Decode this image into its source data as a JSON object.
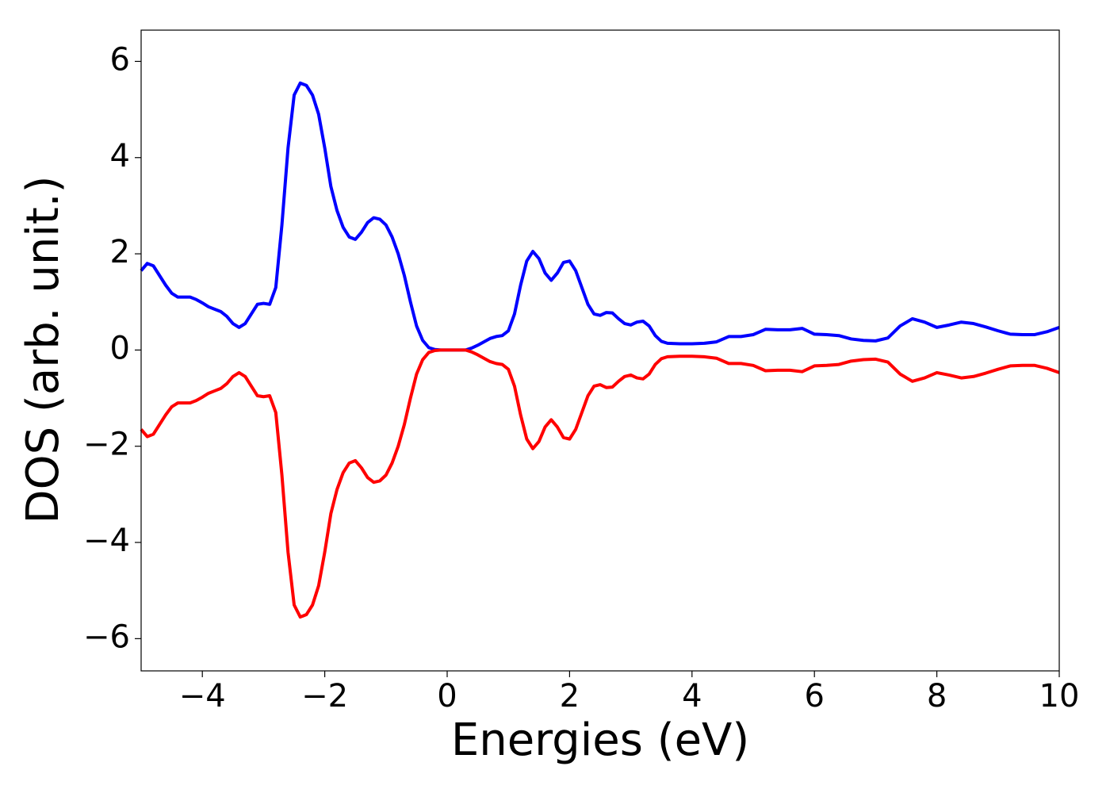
{
  "chart_data": {
    "type": "line",
    "x_label": "Energies (eV)",
    "y_label": "DOS (arb. unit.)",
    "x": [
      -5,
      -4.9,
      -4.8,
      -4.7,
      -4.6,
      -4.5,
      -4.4,
      -4.3,
      -4.2,
      -4.1,
      -4,
      -3.9,
      -3.8,
      -3.7,
      -3.6,
      -3.5,
      -3.4,
      -3.3,
      -3.2,
      -3.1,
      -3,
      -2.9,
      -2.8,
      -2.7,
      -2.6,
      -2.5,
      -2.4,
      -2.3,
      -2.2,
      -2.1,
      -2,
      -1.9,
      -1.8,
      -1.7,
      -1.6,
      -1.5,
      -1.4,
      -1.3,
      -1.2,
      -1.1,
      -1,
      -0.9,
      -0.8,
      -0.7,
      -0.6,
      -0.5,
      -0.4,
      -0.3,
      -0.2,
      -0.1,
      0,
      0.1,
      0.2,
      0.3,
      0.4,
      0.5,
      0.6,
      0.7,
      0.8,
      0.9,
      1,
      1.1,
      1.2,
      1.3,
      1.4,
      1.5,
      1.6,
      1.7,
      1.8,
      1.9,
      2,
      2.1,
      2.2,
      2.3,
      2.4,
      2.5,
      2.6,
      2.7,
      2.8,
      2.9,
      3,
      3.1,
      3.2,
      3.3,
      3.4,
      3.5,
      3.6,
      3.8,
      4,
      4.2,
      4.4,
      4.6,
      4.8,
      5,
      5.2,
      5.4,
      5.6,
      5.8,
      6,
      6.2,
      6.4,
      6.6,
      6.8,
      7,
      7.2,
      7.4,
      7.6,
      7.8,
      8,
      8.2,
      8.4,
      8.6,
      8.8,
      9,
      9.2,
      9.4,
      9.6,
      9.8,
      10
    ],
    "series": [
      {
        "color": "#0000ff",
        "values": [
          1.65,
          1.8,
          1.75,
          1.55,
          1.35,
          1.18,
          1.1,
          1.1,
          1.1,
          1.05,
          0.98,
          0.9,
          0.85,
          0.8,
          0.7,
          0.55,
          0.47,
          0.55,
          0.75,
          0.95,
          0.97,
          0.95,
          1.3,
          2.6,
          4.2,
          5.3,
          5.55,
          5.5,
          5.3,
          4.9,
          4.2,
          3.4,
          2.9,
          2.55,
          2.35,
          2.3,
          2.45,
          2.65,
          2.75,
          2.72,
          2.6,
          2.35,
          2.0,
          1.55,
          1.0,
          0.5,
          0.2,
          0.05,
          0.01,
          0,
          0,
          0,
          0,
          0,
          0.04,
          0.1,
          0.17,
          0.24,
          0.28,
          0.3,
          0.4,
          0.75,
          1.35,
          1.85,
          2.05,
          1.9,
          1.6,
          1.45,
          1.6,
          1.82,
          1.85,
          1.65,
          1.3,
          0.95,
          0.75,
          0.72,
          0.78,
          0.77,
          0.65,
          0.55,
          0.52,
          0.58,
          0.6,
          0.5,
          0.3,
          0.18,
          0.14,
          0.13,
          0.13,
          0.14,
          0.17,
          0.28,
          0.28,
          0.32,
          0.43,
          0.42,
          0.42,
          0.45,
          0.33,
          0.32,
          0.3,
          0.23,
          0.2,
          0.19,
          0.25,
          0.5,
          0.65,
          0.58,
          0.47,
          0.52,
          0.58,
          0.55,
          0.48,
          0.4,
          0.33,
          0.32,
          0.32,
          0.38,
          0.47
        ]
      },
      {
        "color": "#ff0000",
        "values": [
          -1.65,
          -1.8,
          -1.75,
          -1.55,
          -1.35,
          -1.18,
          -1.1,
          -1.1,
          -1.1,
          -1.05,
          -0.98,
          -0.9,
          -0.85,
          -0.8,
          -0.7,
          -0.55,
          -0.47,
          -0.55,
          -0.75,
          -0.95,
          -0.97,
          -0.95,
          -1.3,
          -2.6,
          -4.2,
          -5.3,
          -5.55,
          -5.5,
          -5.3,
          -4.9,
          -4.2,
          -3.4,
          -2.9,
          -2.55,
          -2.35,
          -2.3,
          -2.45,
          -2.65,
          -2.75,
          -2.72,
          -2.6,
          -2.35,
          -2.0,
          -1.55,
          -1.0,
          -0.5,
          -0.2,
          -0.05,
          -0.01,
          0,
          0,
          0,
          0,
          0,
          -0.04,
          -0.1,
          -0.17,
          -0.24,
          -0.28,
          -0.3,
          -0.4,
          -0.75,
          -1.35,
          -1.85,
          -2.05,
          -1.9,
          -1.6,
          -1.45,
          -1.6,
          -1.82,
          -1.85,
          -1.65,
          -1.3,
          -0.95,
          -0.75,
          -0.72,
          -0.78,
          -0.77,
          -0.65,
          -0.55,
          -0.52,
          -0.58,
          -0.6,
          -0.5,
          -0.3,
          -0.18,
          -0.14,
          -0.13,
          -0.13,
          -0.14,
          -0.17,
          -0.28,
          -0.28,
          -0.32,
          -0.43,
          -0.42,
          -0.42,
          -0.45,
          -0.33,
          -0.32,
          -0.3,
          -0.23,
          -0.2,
          -0.19,
          -0.25,
          -0.5,
          -0.65,
          -0.58,
          -0.47,
          -0.52,
          -0.58,
          -0.55,
          -0.48,
          -0.4,
          -0.33,
          -0.32,
          -0.32,
          -0.38,
          -0.47
        ]
      }
    ],
    "xlim": [
      -5,
      10
    ],
    "ylim": [
      -6.67,
      6.65
    ],
    "xticks": [
      {
        "value": -4,
        "label": "−4"
      },
      {
        "value": -2,
        "label": "−2"
      },
      0,
      2,
      4,
      6,
      8,
      10
    ],
    "yticks": [
      {
        "value": -6,
        "label": "−6"
      },
      {
        "value": -4,
        "label": "−4"
      },
      {
        "value": -2,
        "label": "−2"
      },
      0,
      2,
      4,
      6
    ]
  }
}
